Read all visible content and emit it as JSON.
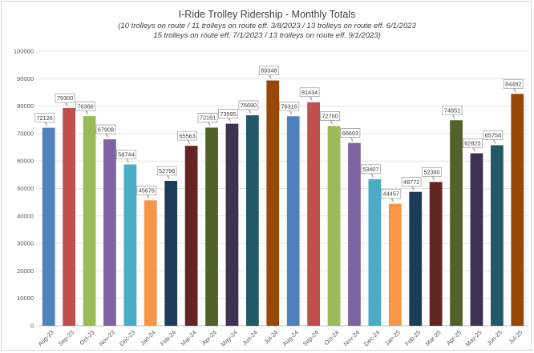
{
  "chart_data": {
    "type": "bar",
    "title": "I-Ride Trolley Ridership - Monthly Totals",
    "subtitle_lines": [
      "(10 trolleys on route / 11 trolleys on route eff. 3/8/2023 / 13 trolleys on route eff. 6/1/2023",
      "15 trolleys on route eff. 7/1/2023 / 13 trolleys on route eff. 9/1/2023)"
    ],
    "xlabel": "",
    "ylabel": "",
    "ylim": [
      0,
      100000
    ],
    "yticks": [
      0,
      10000,
      20000,
      30000,
      40000,
      50000,
      60000,
      70000,
      80000,
      90000,
      100000
    ],
    "grid": true,
    "legend": "none",
    "categories": [
      "Aug-23",
      "Sep-23",
      "Oct-23",
      "Nov-23",
      "Dec-23",
      "Jan-24",
      "Feb-24",
      "Mar-24",
      "Apr-24",
      "May-24",
      "Jun-24",
      "Jul-24",
      "Aug-24",
      "Sep-24",
      "Oct-24",
      "Nov-24",
      "Dec-24",
      "Jan-25",
      "Feb-25",
      "Mar-25",
      "Apr-25",
      "May-25",
      "Jun-25",
      "Jul-25"
    ],
    "values": [
      72126,
      79300,
      76366,
      67908,
      58744,
      45676,
      52796,
      65563,
      72181,
      73595,
      76690,
      89348,
      76316,
      81434,
      72760,
      66603,
      53407,
      44457,
      48772,
      52380,
      74851,
      62825,
      65758,
      84462
    ],
    "colors": [
      "#4f81bd",
      "#c0504d",
      "#9bbb59",
      "#8064a2",
      "#4bacc6",
      "#f79646",
      "#1f3b5a",
      "#632523",
      "#4f6228",
      "#3f3151",
      "#215967",
      "#974806",
      "#4f81bd",
      "#c0504d",
      "#9bbb59",
      "#8064a2",
      "#4bacc6",
      "#f79646",
      "#1f3b5a",
      "#632523",
      "#4f6228",
      "#3f3151",
      "#215967",
      "#974806"
    ]
  }
}
